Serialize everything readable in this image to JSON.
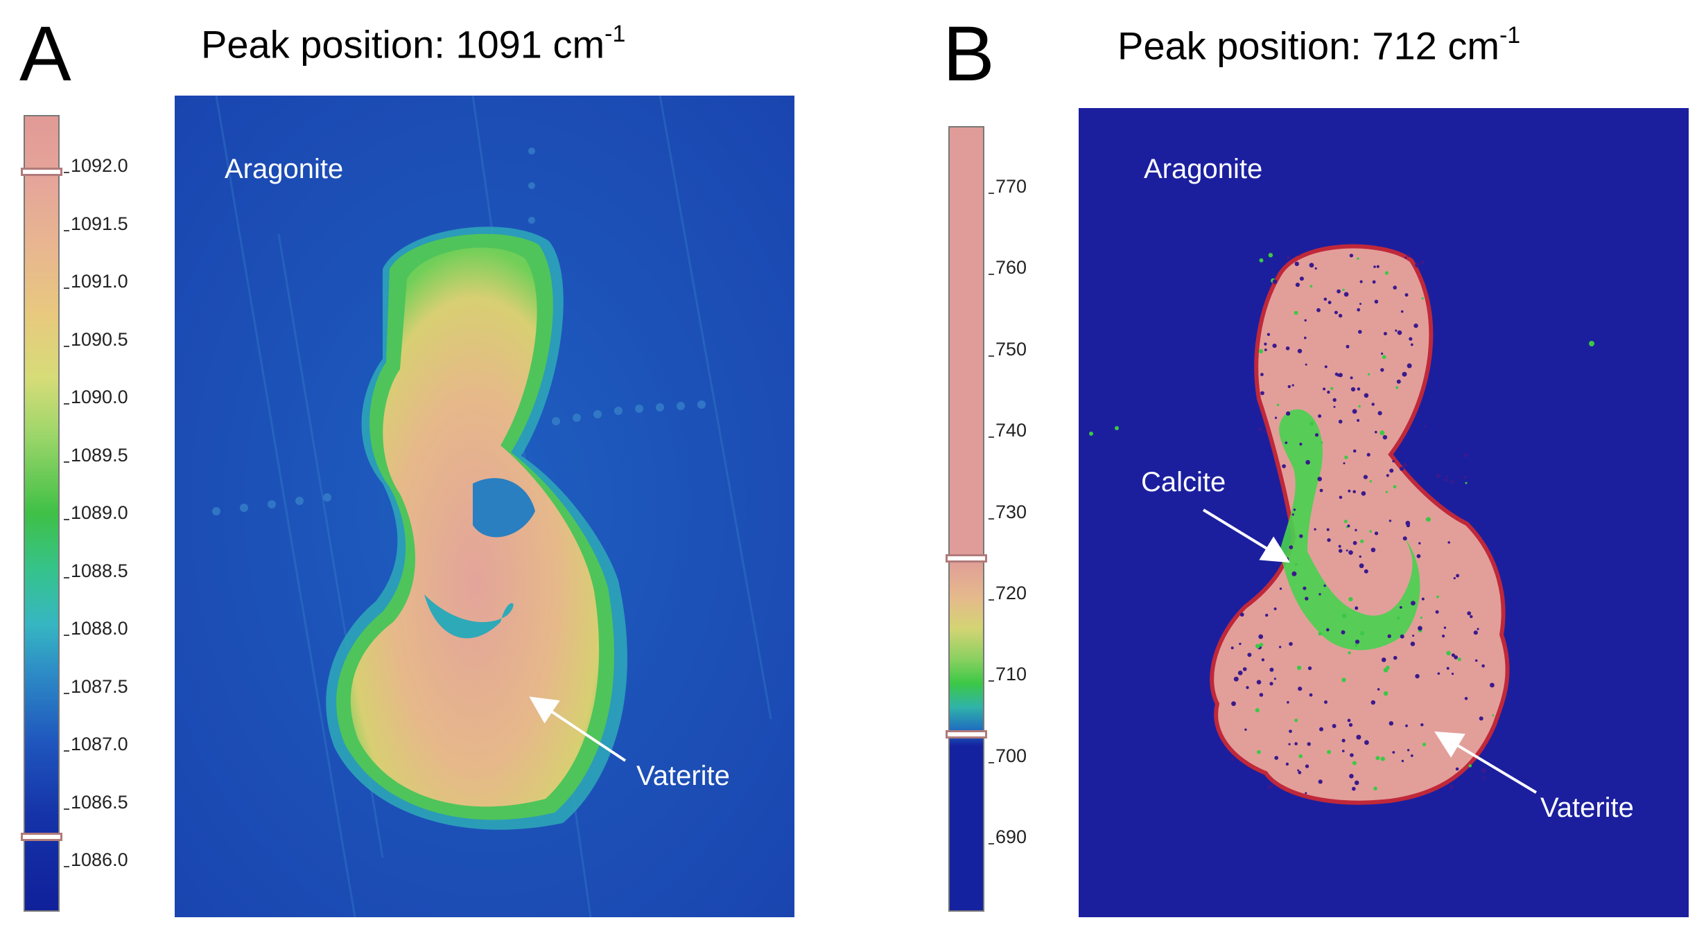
{
  "panels": [
    {
      "letter": "A",
      "title": "Peak position: 1091 cm",
      "title_sup": "-1",
      "ticks": [
        "1092.0",
        "1091.5",
        "1091.0",
        "1090.5",
        "1090.0",
        "1089.5",
        "1089.0",
        "1088.5",
        "1088.0",
        "1087.5",
        "1087.0",
        "1086.5",
        "1086.0"
      ],
      "labels": {
        "aragonite": "Aragonite",
        "vaterite": "Vaterite"
      },
      "colors": {
        "background": "#1a4fb8",
        "low": "#10239e",
        "mid": "#38c060",
        "high": "#e0a098"
      }
    },
    {
      "letter": "B",
      "title": "Peak position: 712 cm",
      "title_sup": "-1",
      "ticks": [
        "770",
        "760",
        "750",
        "740",
        "730",
        "720",
        "710",
        "700",
        "690"
      ],
      "labels": {
        "aragonite": "Aragonite",
        "calcite": "Calcite",
        "vaterite": "Vaterite"
      },
      "colors": {
        "background": "#1b1f9e",
        "low": "#1b1f9e",
        "mid": "#40d040",
        "high": "#e0a09a"
      }
    }
  ]
}
